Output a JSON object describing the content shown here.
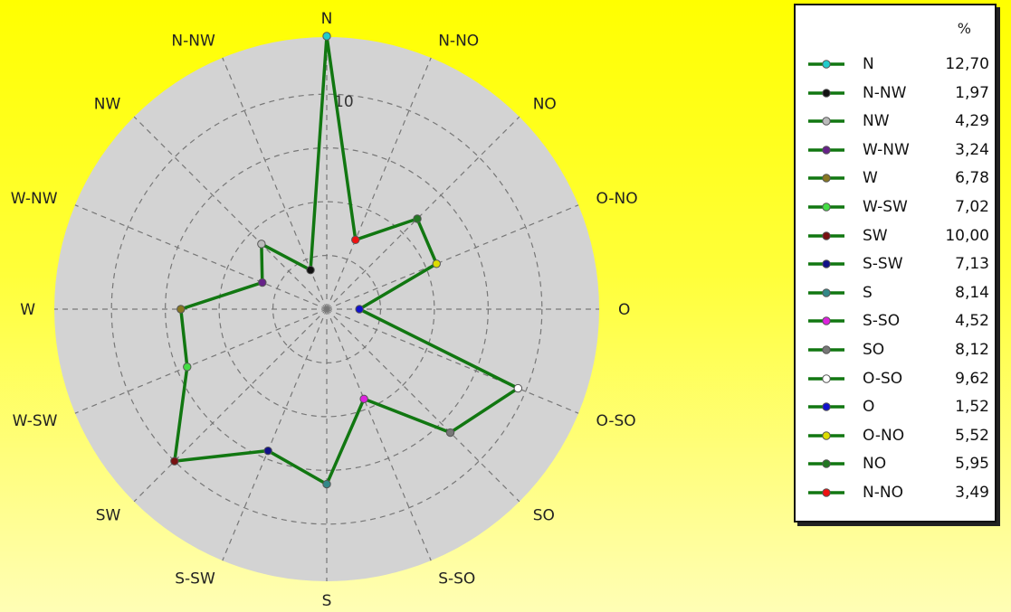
{
  "chart_data": {
    "type": "radar",
    "directions": [
      "N",
      "N-NO",
      "NO",
      "O-NO",
      "O",
      "O-SO",
      "SO",
      "S-SO",
      "S",
      "S-SW",
      "SW",
      "W-SW",
      "W",
      "W-NW",
      "NW",
      "N-NW"
    ],
    "values": [
      12.7,
      3.49,
      5.95,
      5.52,
      1.52,
      9.62,
      8.12,
      4.52,
      8.14,
      7.13,
      10.0,
      7.02,
      6.78,
      3.24,
      4.29,
      1.97
    ],
    "marker_colors": [
      "#22cccc",
      "#ee1111",
      "#227722",
      "#dddd00",
      "#1111cc",
      "#ffffff",
      "#777777",
      "#dd22dd",
      "#338888",
      "#111188",
      "#771111",
      "#44dd44",
      "#887722",
      "#662288",
      "#bbbbbb",
      "#111111"
    ],
    "line_color": "#117711",
    "rings": [
      0,
      2.5,
      5,
      7.5,
      10
    ],
    "rmax": 12.7,
    "ring_label": "10",
    "grid": true,
    "legend_position": "right",
    "legend": {
      "header": "%",
      "order": [
        0,
        15,
        14,
        13,
        12,
        11,
        10,
        9,
        8,
        7,
        6,
        5,
        4,
        3,
        2,
        1
      ],
      "value_labels": [
        "12,70",
        "3,49",
        "5,95",
        "5,52",
        "1,52",
        "9,62",
        "8,12",
        "4,52",
        "8,14",
        "7,13",
        "10,00",
        "7,02",
        "6,78",
        "3,24",
        "4,29",
        "1,97"
      ]
    }
  }
}
